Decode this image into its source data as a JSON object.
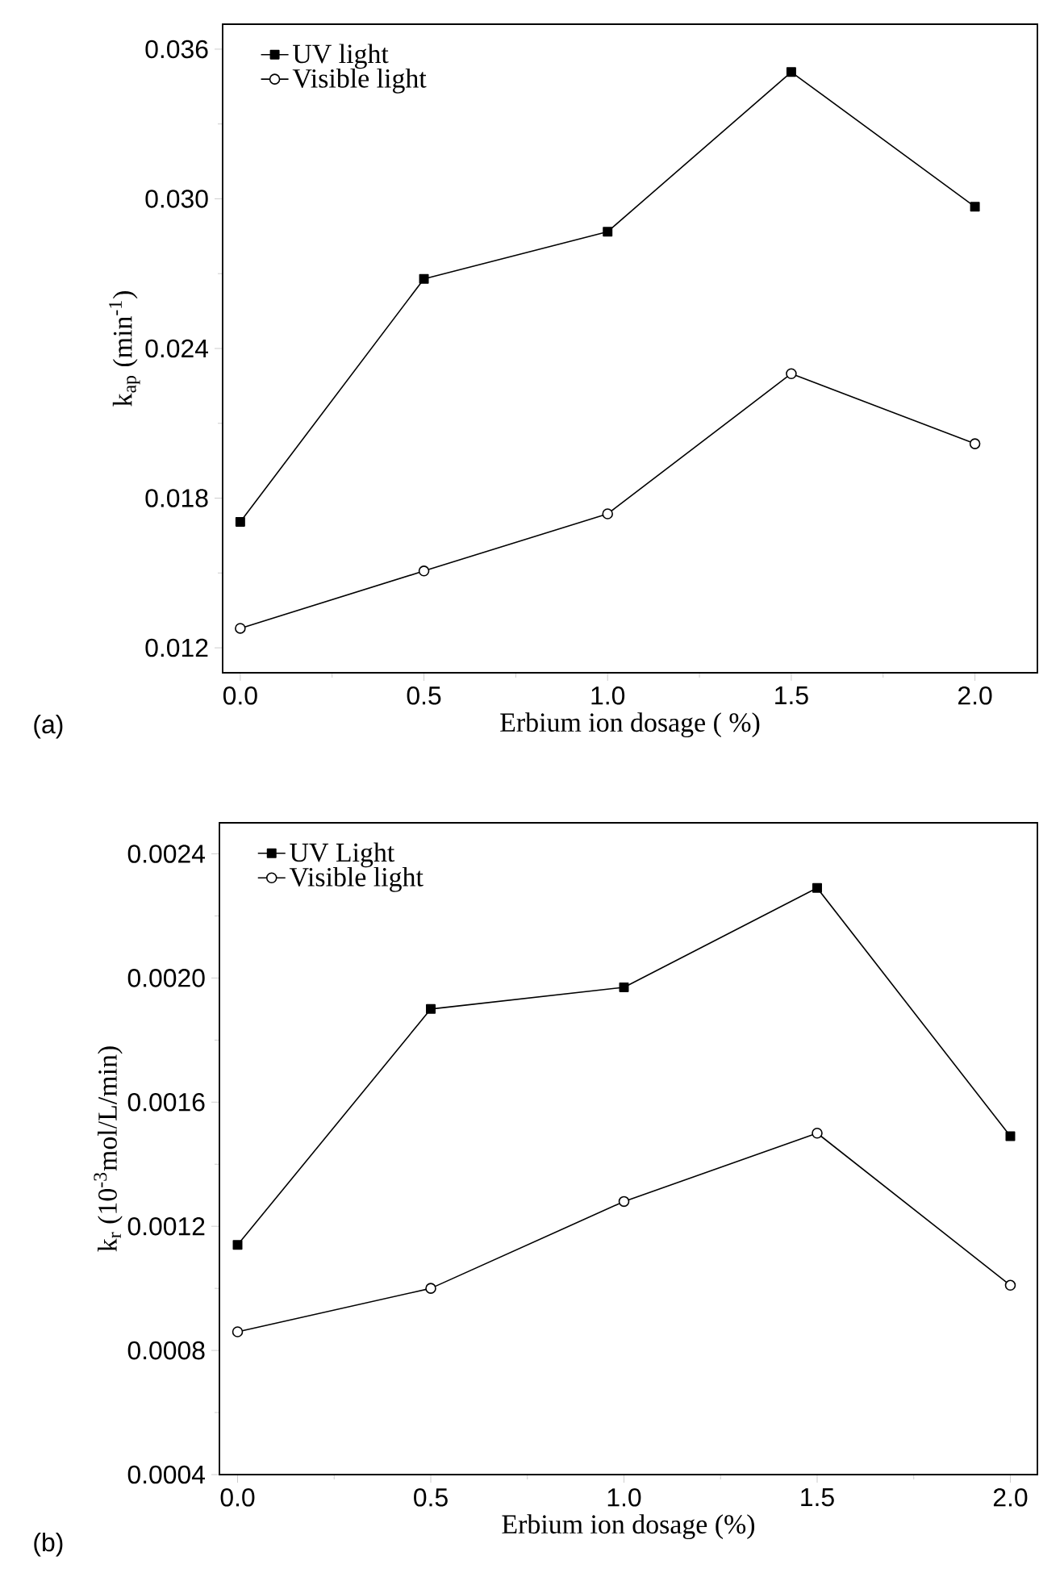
{
  "chart_data": [
    {
      "type": "line",
      "xlabel": "Erbium ion dosage ( %)",
      "ylabel": "k$_{ap}$ (min$^{-1}$)",
      "annotations": [
        "(a)"
      ],
      "x": [
        0,
        0.5,
        1.0,
        1.5,
        2.0
      ],
      "series": [
        {
          "name": "UV light",
          "color": "#000000",
          "marker": "square",
          "values": [
            0.01705,
            0.02679,
            0.02868,
            0.03508,
            0.02968
          ]
        },
        {
          "name": "Visible light",
          "color": "#000000",
          "marker": "circle",
          "values": [
            0.01278,
            0.01508,
            0.01737,
            0.02299,
            0.02018
          ]
        }
      ],
      "xlim": [
        -0.048,
        2.17
      ],
      "ylim": [
        0.011,
        0.037
      ],
      "xticks": [
        {
          "value": 0,
          "label": "0.0"
        },
        {
          "value": 0.5,
          "label": "0.5"
        },
        {
          "value": 1.0,
          "label": "1.0"
        },
        {
          "value": 1.5,
          "label": "1.5"
        },
        {
          "value": 2.0,
          "label": "2.0"
        }
      ],
      "yticks": [
        {
          "value": 0.012,
          "label": "0.012"
        },
        {
          "value": 0.018,
          "label": "0.018"
        },
        {
          "value": 0.024,
          "label": "0.024"
        },
        {
          "value": 0.03,
          "label": "0.030"
        },
        {
          "value": 0.036,
          "label": "0.036"
        }
      ],
      "legend": "top left",
      "grid": false,
      "line_style": "solid"
    },
    {
      "type": "line",
      "xlabel": "Erbium ion dosage (%)",
      "ylabel": "k$_{r}$ (10$^{-3}$mol/L/min)",
      "annotations": [
        "(b)"
      ],
      "x": [
        0,
        0.5,
        1.0,
        1.5,
        2.0
      ],
      "series": [
        {
          "name": "UV Light",
          "color": "#000000",
          "marker": "square",
          "values": [
            0.00114,
            0.0019,
            0.00197,
            0.00229,
            0.00149
          ]
        },
        {
          "name": "Visible light",
          "color": "#000000",
          "marker": "circle",
          "values": [
            0.00086,
            0.001,
            0.00128,
            0.0015,
            0.00101
          ]
        }
      ],
      "xlim": [
        -0.047,
        2.07
      ],
      "ylim": [
        0.0004,
        0.0025
      ],
      "xticks": [
        {
          "value": 0,
          "label": "0.0"
        },
        {
          "value": 0.5,
          "label": "0.5"
        },
        {
          "value": 1.0,
          "label": "1.0"
        },
        {
          "value": 1.5,
          "label": "1.5"
        },
        {
          "value": 2.0,
          "label": "2.0"
        }
      ],
      "yticks": [
        {
          "value": 0.0004,
          "label": "0.0004"
        },
        {
          "value": 0.0008,
          "label": "0.0008"
        },
        {
          "value": 0.0012,
          "label": "0.0012"
        },
        {
          "value": 0.0016,
          "label": "0.0016"
        },
        {
          "value": 0.002,
          "label": "0.0020"
        },
        {
          "value": 0.0024,
          "label": "0.0024"
        }
      ],
      "legend": "top left",
      "grid": false,
      "line_style": "solid"
    }
  ]
}
